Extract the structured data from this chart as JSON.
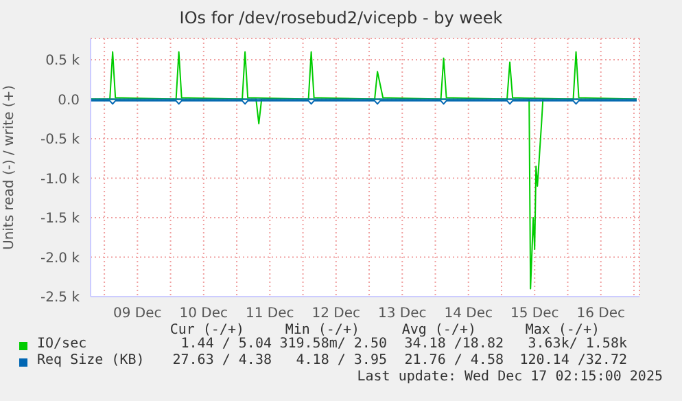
{
  "chart_data": {
    "type": "line",
    "title": "IOs for /dev/rosebud2/vicepb - by week",
    "ylabel": "Units read (-) / write (+)",
    "xlim": [
      "2025-12-08T19:00",
      "2025-12-17T02:00"
    ],
    "xticks": [
      {
        "value": "2025-12-09T00:00",
        "label": null
      },
      {
        "value": "2025-12-09T12:00",
        "label": "09 Dec"
      },
      {
        "value": "2025-12-10T00:00",
        "label": null
      },
      {
        "value": "2025-12-10T12:00",
        "label": "10 Dec"
      },
      {
        "value": "2025-12-11T00:00",
        "label": null
      },
      {
        "value": "2025-12-11T12:00",
        "label": "11 Dec"
      },
      {
        "value": "2025-12-12T00:00",
        "label": null
      },
      {
        "value": "2025-12-12T12:00",
        "label": "12 Dec"
      },
      {
        "value": "2025-12-13T00:00",
        "label": null
      },
      {
        "value": "2025-12-13T12:00",
        "label": "13 Dec"
      },
      {
        "value": "2025-12-14T00:00",
        "label": null
      },
      {
        "value": "2025-12-14T12:00",
        "label": "14 Dec"
      },
      {
        "value": "2025-12-15T00:00",
        "label": null
      },
      {
        "value": "2025-12-15T12:00",
        "label": "15 Dec"
      },
      {
        "value": "2025-12-16T00:00",
        "label": null
      },
      {
        "value": "2025-12-16T12:00",
        "label": "16 Dec"
      },
      {
        "value": "2025-12-17T00:00",
        "label": null
      }
    ],
    "ylim": [
      -2500,
      770
    ],
    "yticks": [
      {
        "value": -2500,
        "label": "-2.5 k"
      },
      {
        "value": -2000,
        "label": "-2.0 k"
      },
      {
        "value": -1500,
        "label": "-1.5 k"
      },
      {
        "value": -1000,
        "label": "-1.0 k"
      },
      {
        "value": -500,
        "label": "-0.5 k"
      },
      {
        "value": 0,
        "label": "0.0"
      },
      {
        "value": 500,
        "label": "0.5 k"
      }
    ],
    "grid": true,
    "legend": "bottom",
    "series": [
      {
        "name": "IO/sec",
        "color": "#00cc00",
        "x": [
          "2025-12-08T19:00",
          "2025-12-09T02:00",
          "2025-12-09T03:00",
          "2025-12-09T04:00",
          "2025-12-10T02:00",
          "2025-12-10T03:00",
          "2025-12-10T04:00",
          "2025-12-11T02:00",
          "2025-12-11T03:00",
          "2025-12-11T04:00",
          "2025-12-12T02:00",
          "2025-12-12T03:00",
          "2025-12-12T04:00",
          "2025-12-13T02:00",
          "2025-12-13T03:00",
          "2025-12-13T05:00",
          "2025-12-14T02:00",
          "2025-12-14T03:00",
          "2025-12-14T04:00",
          "2025-12-15T02:00",
          "2025-12-15T03:00",
          "2025-12-15T04:00",
          "2025-12-16T02:00",
          "2025-12-16T03:00",
          "2025-12-16T04:00",
          "2025-12-17T01:00"
        ],
        "values": [
          0,
          0,
          600,
          20,
          0,
          600,
          20,
          0,
          600,
          20,
          0,
          600,
          20,
          0,
          350,
          20,
          0,
          520,
          20,
          0,
          470,
          20,
          0,
          600,
          20,
          0
        ]
      },
      {
        "color": "#00cc00",
        "x": [
          "2025-12-08T19:00",
          "2025-12-11T07:00",
          "2025-12-11T08:00",
          "2025-12-11T09:00",
          "2025-12-15T10:00",
          "2025-12-15T10:30",
          "2025-12-15T11:30",
          "2025-12-15T12:00",
          "2025-12-15T12:30",
          "2025-12-15T13:00",
          "2025-12-15T14:30",
          "2025-12-15T15:00",
          "2025-12-17T01:00"
        ],
        "values": [
          0,
          0,
          -310,
          0,
          0,
          -2400,
          -1500,
          -1900,
          -850,
          -1100,
          -300,
          0,
          0
        ]
      },
      {
        "name": "Req Size (KB)",
        "color": "#0066b3",
        "x": [
          "2025-12-08T19:00",
          "2025-12-09T03:00",
          "2025-12-10T03:00",
          "2025-12-11T03:00",
          "2025-12-12T03:00",
          "2025-12-13T03:00",
          "2025-12-14T03:00",
          "2025-12-15T03:00",
          "2025-12-16T03:00",
          "2025-12-17T01:00"
        ],
        "values": [
          0,
          0,
          0,
          0,
          0,
          0,
          0,
          0,
          0,
          0
        ]
      },
      {
        "color": "#0066b3",
        "x": [
          "2025-12-08T19:00",
          "2025-12-09T02:00",
          "2025-12-09T03:00",
          "2025-12-09T04:00",
          "2025-12-10T02:00",
          "2025-12-10T03:00",
          "2025-12-10T04:00",
          "2025-12-11T02:00",
          "2025-12-11T03:00",
          "2025-12-11T04:00",
          "2025-12-12T02:00",
          "2025-12-12T03:00",
          "2025-12-12T04:00",
          "2025-12-13T02:00",
          "2025-12-13T03:00",
          "2025-12-13T04:00",
          "2025-12-14T02:00",
          "2025-12-14T03:00",
          "2025-12-14T04:00",
          "2025-12-15T02:00",
          "2025-12-15T03:00",
          "2025-12-15T04:00",
          "2025-12-16T02:00",
          "2025-12-16T03:00",
          "2025-12-16T04:00",
          "2025-12-17T01:00"
        ],
        "values": [
          -20,
          -20,
          -60,
          -20,
          -20,
          -60,
          -20,
          -20,
          -60,
          -20,
          -20,
          -60,
          -20,
          -20,
          -60,
          -20,
          -20,
          -60,
          -20,
          -20,
          -60,
          -20,
          -20,
          -60,
          -20,
          -20
        ]
      }
    ],
    "annotations": [
      "Cur (-/+)",
      "Min (-/+)",
      "Avg (-/+)",
      "Max (-/+)",
      "1.44 / 5.04",
      "319.58m/ 2.50",
      "34.18 /18.82",
      "3.63k/ 1.58k",
      "27.63 / 4.38",
      "4.18 / 3.95",
      "21.76 / 4.58",
      "120.14 /32.72",
      "Last update: Wed Dec 17 02:15:00 2025"
    ]
  }
}
